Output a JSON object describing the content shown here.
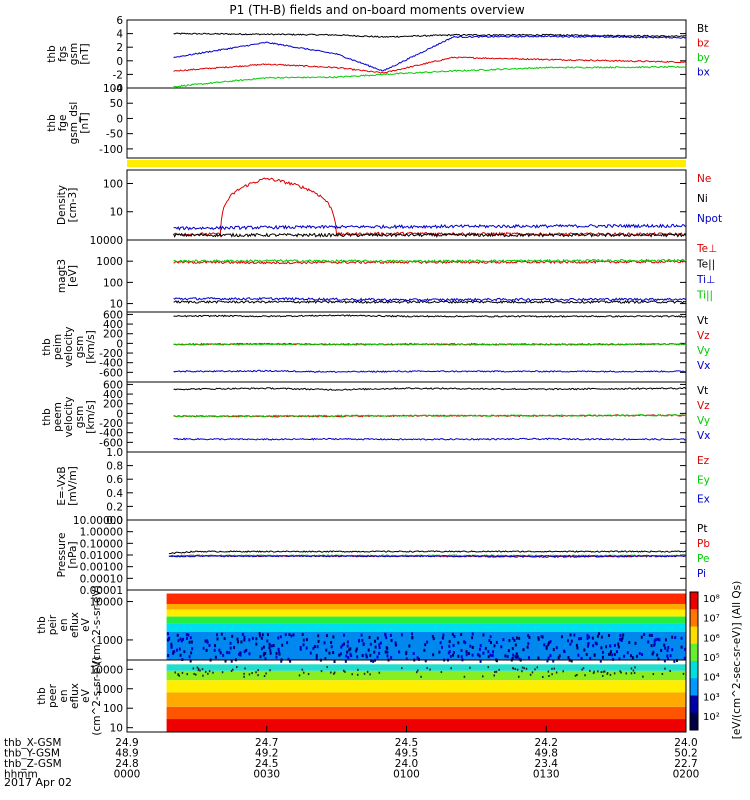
{
  "title": "P1 (TH-B) fields and on-board moments overview",
  "date": "2017 Apr 02",
  "colors": {
    "black": "#000000",
    "red": "#dd0000",
    "green": "#00cc00",
    "blue": "#0000cc",
    "yellow": "#ffee00"
  },
  "colorbar": {
    "ticks": [
      "10⁸",
      "10⁷",
      "10⁶",
      "10⁵",
      "10⁴",
      "10³",
      "10²"
    ],
    "label": "[eV/(cm^2-sec-sr-eV)] (All Qs)"
  },
  "x_axis": {
    "time_ticks": [
      "0000",
      "0030",
      "0100",
      "0130",
      "0200"
    ],
    "rows": [
      {
        "label": "thb_X-GSM",
        "values": [
          "24.9",
          "24.7",
          "24.5",
          "24.2",
          "24.0"
        ]
      },
      {
        "label": "thb_Y-GSM",
        "values": [
          "48.9",
          "49.2",
          "49.5",
          "49.8",
          "50.2"
        ]
      },
      {
        "label": "thb_Z-GSM",
        "values": [
          "24.8",
          "24.5",
          "24.0",
          "23.4",
          "22.7"
        ]
      },
      {
        "label": "hhmm",
        "values": [
          "0000",
          "0030",
          "0100",
          "0130",
          "0200"
        ]
      }
    ]
  },
  "chart_data": [
    {
      "type": "line",
      "ylabel": "thb fgs gsm [nT]",
      "ylim": [
        -4,
        6
      ],
      "yticks": [
        "6",
        "4",
        "2",
        "0",
        "-2",
        "-4"
      ],
      "x": [
        "00:10",
        "00:30",
        "00:45",
        "00:55",
        "01:10",
        "01:30",
        "02:00"
      ],
      "series": [
        {
          "name": "Bt",
          "values": [
            4.0,
            3.9,
            3.8,
            3.5,
            3.8,
            3.8,
            3.6
          ]
        },
        {
          "name": "bz",
          "values": [
            -1.5,
            -0.5,
            -1.0,
            -1.8,
            0.5,
            0.2,
            -0.2
          ]
        },
        {
          "name": "by",
          "values": [
            -3.8,
            -2.5,
            -2.4,
            -2.0,
            -1.5,
            -1.0,
            -0.9
          ]
        },
        {
          "name": "bx",
          "values": [
            0.5,
            2.7,
            1.0,
            -1.5,
            3.5,
            3.6,
            3.4
          ]
        }
      ]
    },
    {
      "type": "line",
      "ylabel": "thb fge gsm_dsl [nT]",
      "ylim": [
        -130,
        100
      ],
      "yticks": [
        "100",
        "50",
        "0",
        "-50",
        "-100"
      ],
      "series": []
    },
    {
      "type": "line",
      "ylabel": "Density [cm-3]",
      "scale": "log",
      "ylim": [
        1,
        300
      ],
      "yticks": [
        "100",
        "10"
      ],
      "x": [
        "00:10",
        "00:20",
        "00:30",
        "00:45",
        "01:00",
        "01:30",
        "02:00"
      ],
      "series": [
        {
          "name": "Ne",
          "values": [
            1.6,
            1.6,
            150,
            1.6,
            1.7,
            1.6,
            1.6
          ]
        },
        {
          "name": "Ni",
          "values": [
            1.5,
            1.5,
            1.5,
            1.5,
            1.5,
            1.5,
            1.5
          ]
        },
        {
          "name": "Npot",
          "values": [
            2.6,
            2.7,
            2.8,
            2.9,
            3.0,
            3.1,
            3.2
          ]
        }
      ]
    },
    {
      "type": "line",
      "ylabel": "magt3 [eV]",
      "scale": "log",
      "ylim": [
        4,
        10000
      ],
      "yticks": [
        "10000",
        "1000",
        "100",
        "10"
      ],
      "x": [
        "00:10",
        "00:30",
        "01:00",
        "01:30",
        "02:00"
      ],
      "series": [
        {
          "name": "Te⊥",
          "values": [
            900,
            850,
            900,
            900,
            950
          ]
        },
        {
          "name": "Te||",
          "values": [
            12,
            12,
            12,
            12,
            12
          ]
        },
        {
          "name": "Ti⊥",
          "values": [
            17,
            17,
            15,
            16,
            16
          ]
        },
        {
          "name": "Ti||",
          "values": [
            1000,
            1050,
            1000,
            1050,
            1100
          ]
        }
      ]
    },
    {
      "type": "line",
      "ylabel": "thb peim velocity gsm [km/s]",
      "ylim": [
        -800,
        650
      ],
      "yticks": [
        "600",
        "400",
        "200",
        "0",
        "-200",
        "-400",
        "-600"
      ],
      "x": [
        "00:10",
        "00:20",
        "00:30",
        "00:45",
        "01:00",
        "01:30",
        "02:00"
      ],
      "series": [
        {
          "name": "Vt",
          "values": [
            560,
            570,
            560,
            580,
            560,
            560,
            560
          ]
        },
        {
          "name": "Vz",
          "values": [
            -20,
            -15,
            -10,
            -20,
            -15,
            -20,
            -15
          ]
        },
        {
          "name": "Vy",
          "values": [
            -25,
            -20,
            -20,
            -25,
            -20,
            -25,
            -20
          ]
        },
        {
          "name": "Vx",
          "values": [
            -580,
            -580,
            -570,
            -590,
            -580,
            -580,
            -580
          ]
        }
      ]
    },
    {
      "type": "line",
      "ylabel": "thb peem velocity gsm [km/s]",
      "ylim": [
        -800,
        650
      ],
      "yticks": [
        "600",
        "400",
        "200",
        "0",
        "-200",
        "-400",
        "-600"
      ],
      "x": [
        "00:10",
        "00:30",
        "00:45",
        "01:00",
        "01:30",
        "02:00"
      ],
      "series": [
        {
          "name": "Vt",
          "values": [
            500,
            520,
            490,
            520,
            500,
            520
          ]
        },
        {
          "name": "Vz",
          "values": [
            -60,
            -60,
            -60,
            -50,
            -50,
            -40
          ]
        },
        {
          "name": "Vy",
          "values": [
            -60,
            -55,
            -50,
            -50,
            -45,
            -40
          ]
        },
        {
          "name": "Vx",
          "values": [
            -530,
            -540,
            -530,
            -540,
            -530,
            -540
          ]
        }
      ]
    },
    {
      "type": "line",
      "ylabel": "E=-VxB [mV/m]",
      "ylim": [
        0,
        1
      ],
      "yticks": [
        "1.0",
        "0.8",
        "0.6",
        "0.4",
        "0.2",
        "0.0"
      ],
      "series": [
        {
          "name": "Ez",
          "values": []
        },
        {
          "name": "Ey",
          "values": []
        },
        {
          "name": "Ex",
          "values": []
        }
      ]
    },
    {
      "type": "line",
      "ylabel": "Pressure [nPa]",
      "scale": "log",
      "ylim": [
        1e-05,
        10
      ],
      "yticks": [
        "10.00000",
        "1.00000",
        "0.10000",
        "0.01000",
        "0.00100",
        "0.00010",
        "0.00001"
      ],
      "x": [
        "00:00",
        "00:05",
        "00:15",
        "00:30",
        "01:00",
        "01:30",
        "02:00"
      ],
      "series": [
        {
          "name": "Pt",
          "values": [
            0.0003,
            0.01,
            0.02,
            0.02,
            0.02,
            0.02,
            0.02
          ]
        },
        {
          "name": "Pb",
          "values": [
            0.008,
            0.008,
            0.009,
            0.008,
            0.008,
            0.007,
            0.008
          ]
        },
        {
          "name": "Pe",
          "values": [
            0.007,
            0.007,
            0.009,
            0.009,
            0.009,
            0.009,
            0.009
          ]
        },
        {
          "name": "Pi",
          "values": [
            0.008,
            0.007,
            0.008,
            0.008,
            0.008,
            0.008,
            0.008
          ]
        }
      ]
    },
    {
      "type": "heatmap",
      "ylabel": "thb peir en eflux eV (cm^2-s-sr-eV)",
      "scale": "log",
      "yticks": [
        "10000",
        "1000"
      ],
      "zlabel": "eV/(cm^2-sec-sr-eV)"
    },
    {
      "type": "heatmap",
      "ylabel": "thb peer en eflux eV (cm^2-s-sr-eV)",
      "scale": "log",
      "yticks": [
        "10000",
        "1000",
        "100",
        "10"
      ],
      "zlabel": "eV/(cm^2-sec-sr-eV)"
    }
  ]
}
